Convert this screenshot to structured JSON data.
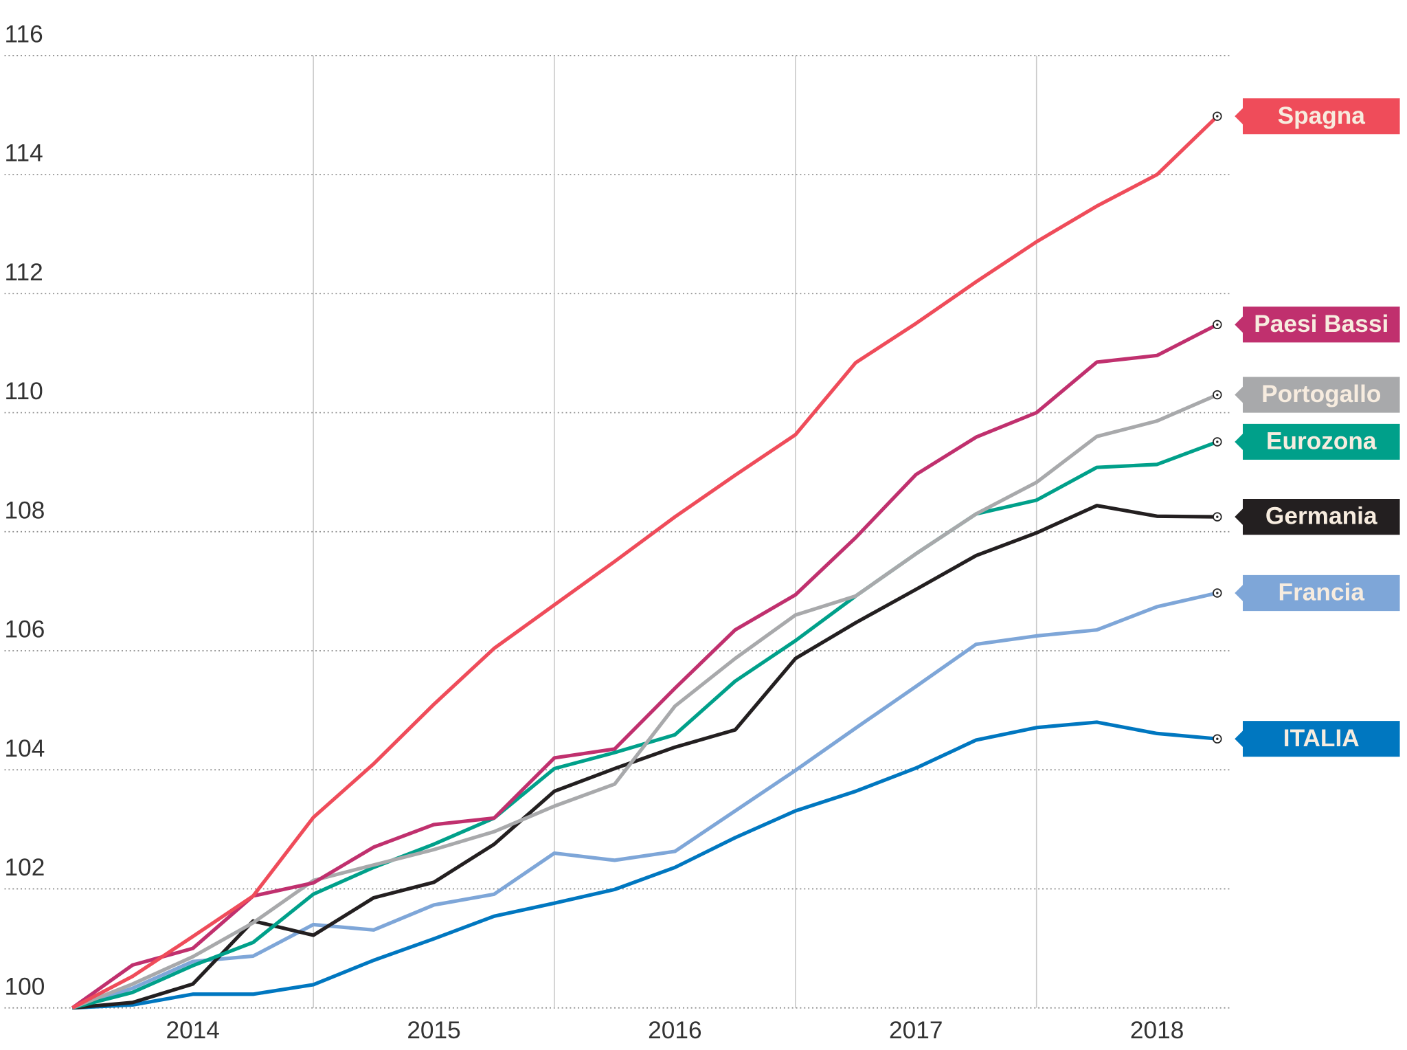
{
  "chart_data": {
    "type": "line",
    "x": [
      2014.0,
      2014.25,
      2014.5,
      2014.75,
      2015.0,
      2015.25,
      2015.5,
      2015.75,
      2016.0,
      2016.25,
      2016.5,
      2016.75,
      2017.0,
      2017.25,
      2017.5,
      2017.75,
      2018.0,
      2018.25,
      2018.5,
      2018.75
    ],
    "xlim": [
      2013.7,
      2018.8
    ],
    "xticks": [
      {
        "value": 2014.5,
        "label": "2014"
      },
      {
        "value": 2015.5,
        "label": "2015"
      },
      {
        "value": 2016.5,
        "label": "2016"
      },
      {
        "value": 2017.5,
        "label": "2017"
      },
      {
        "value": 2018.5,
        "label": "2018"
      }
    ],
    "xgrid": [
      2015,
      2016,
      2017,
      2018
    ],
    "ylim": [
      100,
      116
    ],
    "yticks": [
      100,
      102,
      104,
      106,
      108,
      110,
      112,
      114,
      116
    ],
    "grid": true,
    "series": [
      {
        "name": "Spagna",
        "color": "#ef4c5a",
        "values": [
          100,
          100.53,
          101.2,
          101.88,
          103.2,
          104.1,
          105.1,
          106.04,
          106.77,
          107.5,
          108.25,
          108.95,
          109.63,
          110.84,
          111.5,
          112.2,
          112.87,
          113.47,
          114.0,
          114.98
        ]
      },
      {
        "name": "Paesi Bassi",
        "color": "#c0306e",
        "values": [
          100,
          100.72,
          101.0,
          101.88,
          102.1,
          102.7,
          103.08,
          103.19,
          104.2,
          104.35,
          105.37,
          106.35,
          106.94,
          107.9,
          108.96,
          109.59,
          110.0,
          110.85,
          110.96,
          111.48
        ]
      },
      {
        "name": "Portogallo",
        "color": "#a8a9ab",
        "values": [
          100,
          100.4,
          100.86,
          101.43,
          102.14,
          102.4,
          102.66,
          102.96,
          103.39,
          103.76,
          105.07,
          105.87,
          106.6,
          106.92,
          107.63,
          108.3,
          108.83,
          109.6,
          109.86,
          110.3
        ]
      },
      {
        "name": "Eurozona",
        "color": "#00a08a",
        "values": [
          100,
          100.26,
          100.71,
          101.1,
          101.91,
          102.36,
          102.75,
          103.19,
          104.02,
          104.29,
          104.59,
          105.49,
          106.17,
          106.92,
          107.63,
          108.3,
          108.53,
          109.08,
          109.13,
          109.51
        ]
      },
      {
        "name": "Germania",
        "color": "#231f20",
        "values": [
          100,
          100.09,
          100.4,
          101.46,
          101.22,
          101.85,
          102.11,
          102.75,
          103.64,
          104.02,
          104.38,
          104.67,
          105.87,
          106.47,
          107.03,
          107.6,
          107.98,
          108.44,
          108.26,
          108.25
        ]
      },
      {
        "name": "Francia",
        "color": "#7ea6d8",
        "values": [
          100,
          100.33,
          100.78,
          100.87,
          101.4,
          101.31,
          101.73,
          101.91,
          102.6,
          102.48,
          102.63,
          103.31,
          103.99,
          104.7,
          105.4,
          106.11,
          106.25,
          106.35,
          106.74,
          106.97
        ]
      },
      {
        "name": "ITALIA",
        "color": "#0077c0",
        "values": [
          100,
          100.05,
          100.23,
          100.23,
          100.39,
          100.8,
          101.16,
          101.54,
          101.76,
          101.99,
          102.36,
          102.86,
          103.31,
          103.64,
          104.03,
          104.5,
          104.71,
          104.8,
          104.61,
          104.52
        ]
      }
    ]
  }
}
